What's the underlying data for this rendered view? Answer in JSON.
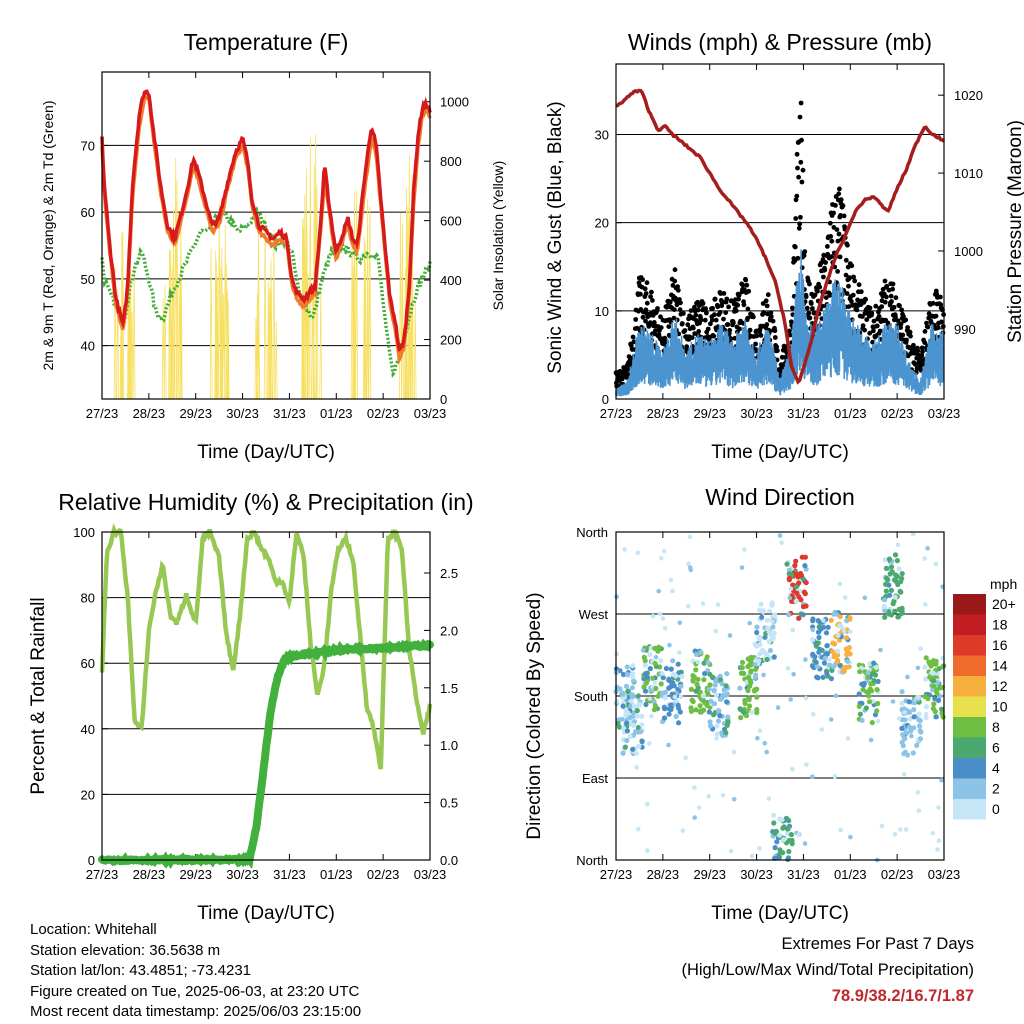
{
  "chart_data": [
    {
      "type": "line",
      "title": "Temperature (F)",
      "xlabel": "Time (Day/UTC)",
      "ylabel": "2m & 9m T (Red, Orange) & 2m Td (Green)",
      "ylabel_right": "Solar Insolation (Yellow)",
      "x_ticks": [
        "27/23",
        "28/23",
        "29/23",
        "30/23",
        "31/23",
        "01/23",
        "02/23",
        "03/23"
      ],
      "ylim": [
        32,
        81
      ],
      "y_ticks": [
        40,
        50,
        60,
        70
      ],
      "ylim_right": [
        0,
        1100
      ],
      "y_ticks_right": [
        0,
        200,
        400,
        600,
        800,
        1000
      ],
      "grid": true,
      "series": [
        {
          "color": "#d7191c",
          "x": [
            0,
            0.05,
            0.15,
            0.3,
            0.45,
            0.55,
            0.65,
            0.8,
            0.9,
            1.0,
            1.1,
            1.25,
            1.4,
            1.55,
            1.7,
            1.8,
            1.95,
            2.05,
            2.2,
            2.35,
            2.5,
            2.6,
            2.7,
            2.85,
            3.0,
            3.1,
            3.2,
            3.35,
            3.5,
            3.65,
            3.8,
            3.95,
            4.05,
            4.15,
            4.3,
            4.45,
            4.55,
            4.65,
            4.75,
            4.85,
            4.95,
            5.0,
            5.1,
            5.25,
            5.35,
            5.45,
            5.6,
            5.75,
            5.85,
            5.95,
            6.05,
            6.15,
            6.25,
            6.35,
            6.45,
            6.55,
            6.65,
            6.75,
            6.85,
            6.95,
            7.0
          ],
          "values": [
            71,
            64,
            56,
            47,
            43,
            49,
            64,
            75,
            78,
            78,
            72,
            64,
            58,
            56,
            60,
            63,
            68,
            66,
            62,
            58,
            59,
            62,
            65,
            69,
            71,
            68,
            62,
            58,
            57,
            56,
            57,
            56,
            50,
            48,
            47,
            48,
            49,
            57,
            67,
            61,
            56,
            54,
            56,
            59,
            56,
            55,
            65,
            73,
            70,
            62,
            54,
            47,
            44,
            39,
            41,
            48,
            63,
            72,
            76,
            76,
            75
          ]
        },
        {
          "color": "#f07c2b",
          "x": [
            0,
            0.05,
            0.15,
            0.3,
            0.45,
            0.55,
            0.65,
            0.8,
            0.9,
            1.0,
            1.1,
            1.25,
            1.4,
            1.55,
            1.7,
            1.8,
            1.95,
            2.05,
            2.2,
            2.35,
            2.5,
            2.6,
            2.7,
            2.85,
            3.0,
            3.1,
            3.2,
            3.35,
            3.5,
            3.65,
            3.8,
            3.95,
            4.05,
            4.15,
            4.3,
            4.45,
            4.55,
            4.65,
            4.75,
            4.85,
            4.95,
            5.0,
            5.1,
            5.25,
            5.35,
            5.45,
            5.6,
            5.75,
            5.85,
            5.95,
            6.05,
            6.15,
            6.25,
            6.35,
            6.45,
            6.55,
            6.65,
            6.75,
            6.85,
            6.95,
            7.0
          ],
          "values": [
            70,
            63,
            55,
            46,
            42,
            48,
            62,
            73,
            77,
            77,
            71,
            63,
            57,
            55,
            59,
            62,
            67,
            65,
            61,
            57,
            58,
            61,
            64,
            68,
            70,
            67,
            61,
            57,
            56,
            55,
            56,
            55,
            49,
            47,
            46,
            47,
            48,
            56,
            65,
            60,
            55,
            53,
            55,
            58,
            55,
            54,
            63,
            71,
            69,
            61,
            53,
            46,
            43,
            38,
            40,
            47,
            61,
            70,
            75,
            75,
            74
          ]
        },
        {
          "color": "#41ab34",
          "x": [
            0,
            0.05,
            0.15,
            0.3,
            0.45,
            0.55,
            0.7,
            0.85,
            1.0,
            1.15,
            1.3,
            1.5,
            1.7,
            1.9,
            2.1,
            2.3,
            2.5,
            2.7,
            2.9,
            3.1,
            3.3,
            3.5,
            3.7,
            3.9,
            4.05,
            4.2,
            4.35,
            4.5,
            4.7,
            4.9,
            5.1,
            5.3,
            5.5,
            5.7,
            5.9,
            6.05,
            6.2,
            6.35,
            6.5,
            6.7,
            6.9,
            7.0
          ],
          "values": [
            53,
            50,
            48,
            46,
            43,
            47,
            52,
            54,
            50,
            45,
            44,
            48,
            51,
            54,
            57,
            57,
            60,
            59,
            57,
            58,
            60,
            58,
            55,
            56,
            54,
            48,
            46,
            44,
            50,
            54,
            55,
            54,
            53,
            54,
            53,
            43,
            36,
            38,
            43,
            48,
            51,
            52
          ]
        }
      ],
      "series_right": [
        {
          "color": "#f7e061",
          "days": [
            0,
            1,
            2,
            3,
            4,
            5,
            6
          ],
          "peaks": [
            770,
            980,
            830,
            870,
            1050,
            1060,
            1000
          ]
        }
      ]
    },
    {
      "type": "scatter",
      "title": "Winds (mph) & Pressure (mb)",
      "xlabel": "Time (Day/UTC)",
      "ylabel": "Sonic Wind & Gust (Blue, Black)",
      "ylabel_right": "Station Pressure (Maroon)",
      "x_ticks": [
        "27/23",
        "28/23",
        "29/23",
        "30/23",
        "31/23",
        "01/23",
        "02/23",
        "03/23"
      ],
      "ylim": [
        0,
        38
      ],
      "y_ticks": [
        0,
        10,
        20,
        30
      ],
      "ylim_right": [
        981,
        1024
      ],
      "y_ticks_right": [
        990,
        1000,
        1010,
        1020
      ],
      "grid": true,
      "series": [
        {
          "color": "#000000",
          "x": [
            0,
            0.25,
            0.5,
            0.75,
            1.0,
            1.25,
            1.5,
            1.75,
            2.0,
            2.25,
            2.5,
            2.75,
            3.0,
            3.25,
            3.5,
            3.75,
            3.85,
            3.95,
            4.05,
            4.25,
            4.5,
            4.75,
            5.0,
            5.25,
            5.5,
            5.75,
            6.0,
            6.25,
            6.5,
            6.75,
            7.0
          ],
          "values": [
            3,
            4,
            14,
            13,
            9,
            15,
            9,
            12,
            10,
            13,
            11,
            14,
            9,
            13,
            4,
            10,
            27,
            34,
            16,
            12,
            20,
            26,
            16,
            12,
            10,
            14,
            13,
            8,
            5,
            13,
            12
          ]
        },
        {
          "color": "#4c94d0",
          "x": [
            0,
            0.25,
            0.5,
            0.75,
            1.0,
            1.25,
            1.5,
            1.75,
            2.0,
            2.25,
            2.5,
            2.75,
            3.0,
            3.25,
            3.5,
            3.75,
            3.85,
            3.95,
            4.05,
            4.25,
            4.5,
            4.75,
            5.0,
            5.25,
            5.5,
            5.75,
            6.0,
            6.25,
            6.5,
            6.75,
            7.0
          ],
          "values": [
            1,
            2,
            8,
            7,
            5,
            9,
            5,
            7,
            6,
            8,
            6,
            9,
            5,
            8,
            2,
            6,
            12,
            16,
            9,
            7,
            11,
            13,
            9,
            7,
            6,
            8,
            8,
            4,
            2,
            8,
            7
          ]
        }
      ],
      "series_right": [
        {
          "color": "#a51e1e",
          "x": [
            0,
            0.2,
            0.4,
            0.55,
            0.7,
            0.9,
            1.05,
            1.2,
            1.4,
            1.6,
            1.8,
            2.0,
            2.2,
            2.4,
            2.6,
            2.8,
            3.0,
            3.2,
            3.4,
            3.6,
            3.75,
            3.9,
            4.0,
            4.15,
            4.3,
            4.5,
            4.7,
            4.9,
            5.1,
            5.3,
            5.5,
            5.65,
            5.8,
            6.0,
            6.2,
            6.35,
            6.5,
            6.6,
            6.75,
            6.9,
            7.0
          ],
          "values": [
            1018.5,
            1019.5,
            1020.5,
            1020.5,
            1018,
            1015.5,
            1016,
            1015,
            1014,
            1013,
            1012,
            1010,
            1008,
            1006.5,
            1005,
            1003.5,
            1001.5,
            999,
            996,
            991,
            985,
            983,
            985,
            988,
            992,
            996,
            999.5,
            1002,
            1005,
            1006.5,
            1007,
            1006,
            1005,
            1008,
            1010.5,
            1013,
            1015,
            1016,
            1015,
            1014.5,
            1014
          ]
        }
      ]
    },
    {
      "type": "line",
      "title": "Relative Humidity (%) & Precipitation (in)",
      "xlabel": "Time (Day/UTC)",
      "ylabel": "Percent & Total Rainfall",
      "x_ticks": [
        "27/23",
        "28/23",
        "29/23",
        "30/23",
        "31/23",
        "01/23",
        "02/23",
        "03/23"
      ],
      "ylim": [
        0,
        100
      ],
      "y_ticks": [
        0,
        20,
        40,
        60,
        80,
        100
      ],
      "ylim_right": [
        0,
        2.857
      ],
      "y_ticks_right": [
        "0.0",
        "0.5",
        "1.0",
        "1.5",
        "2.0",
        "2.5"
      ],
      "grid": true,
      "series": [
        {
          "color": "#97c854",
          "x": [
            0,
            0.1,
            0.25,
            0.4,
            0.55,
            0.7,
            0.85,
            1.0,
            1.15,
            1.3,
            1.45,
            1.6,
            1.8,
            2.0,
            2.15,
            2.3,
            2.5,
            2.65,
            2.8,
            2.95,
            3.1,
            3.25,
            3.4,
            3.55,
            3.7,
            3.85,
            4.0,
            4.15,
            4.3,
            4.45,
            4.6,
            4.75,
            4.9,
            5.05,
            5.2,
            5.35,
            5.5,
            5.65,
            5.8,
            5.95,
            6.1,
            6.25,
            6.4,
            6.55,
            6.7,
            6.85,
            7.0
          ],
          "values": [
            57,
            93,
            100,
            100,
            80,
            42,
            40,
            70,
            82,
            90,
            75,
            72,
            81,
            72,
            98,
            100,
            92,
            69,
            58,
            75,
            98,
            100,
            95,
            92,
            85,
            85,
            78,
            100,
            93,
            66,
            50,
            60,
            83,
            95,
            98,
            92,
            70,
            47,
            40,
            28,
            98,
            100,
            95,
            65,
            50,
            38,
            47
          ]
        },
        {
          "color": "#41b03c",
          "x": [
            0,
            1,
            2,
            3,
            3.15,
            3.3,
            3.45,
            3.6,
            3.75,
            3.9,
            4.1,
            4.5,
            5.0,
            6.0,
            7.0
          ],
          "values": [
            0,
            0,
            0,
            0,
            0.01,
            0.3,
            0.8,
            1.3,
            1.6,
            1.75,
            1.78,
            1.8,
            1.83,
            1.85,
            1.87
          ]
        }
      ]
    },
    {
      "type": "scatter",
      "title": "Wind Direction",
      "xlabel": "Time (Day/UTC)",
      "ylabel": "Direction (Colored By Speed)",
      "x_ticks": [
        "27/23",
        "28/23",
        "29/23",
        "30/23",
        "31/23",
        "01/23",
        "02/23",
        "03/23"
      ],
      "y_ticks": [
        "North",
        "East",
        "South",
        "West",
        "North"
      ],
      "grid": true,
      "legend": {
        "title": "mph",
        "labels": [
          "0",
          "2",
          "4",
          "6",
          "8",
          "10",
          "12",
          "14",
          "16",
          "18",
          "20+"
        ],
        "colors": [
          "#c6e6f7",
          "#8cc4e8",
          "#4a8ec8",
          "#4ba86e",
          "#6fbe44",
          "#e8e14e",
          "#f7b03e",
          "#ef6c2c",
          "#dd3a2a",
          "#c21d22",
          "#991818"
        ],
        "placement": "right"
      },
      "clusters": [
        {
          "x": 0.2,
          "dir": 180,
          "color": "#8cc4e8"
        },
        {
          "x": 0.35,
          "dir": 150,
          "color": "#c6e6f7"
        },
        {
          "x": 0.8,
          "dir": 200,
          "color": "#6fbe44"
        },
        {
          "x": 1.2,
          "dir": 185,
          "color": "#4a8ec8"
        },
        {
          "x": 1.8,
          "dir": 195,
          "color": "#6fbe44"
        },
        {
          "x": 2.2,
          "dir": 170,
          "color": "#8cc4e8"
        },
        {
          "x": 2.8,
          "dir": 190,
          "color": "#6fbe44"
        },
        {
          "x": 3.2,
          "dir": 250,
          "color": "#c6e6f7"
        },
        {
          "x": 3.55,
          "dir": 15,
          "color": "#4ba86e"
        },
        {
          "x": 3.85,
          "dir": 300,
          "color": "#dd3a2a"
        },
        {
          "x": 4.4,
          "dir": 230,
          "color": "#4a8ec8"
        },
        {
          "x": 4.8,
          "dir": 240,
          "color": "#f7b03e"
        },
        {
          "x": 5.4,
          "dir": 185,
          "color": "#6fbe44"
        },
        {
          "x": 5.9,
          "dir": 300,
          "color": "#4ba86e"
        },
        {
          "x": 6.3,
          "dir": 150,
          "color": "#8cc4e8"
        },
        {
          "x": 6.8,
          "dir": 190,
          "color": "#6fbe44"
        }
      ]
    }
  ],
  "info": {
    "location": "Location: Whitehall",
    "elevation": "Station elevation: 36.5638 m",
    "latlon": "Station lat/lon: 43.4851; -73.4231",
    "created": "Figure created on Tue, 2025-06-03, at 23:20 UTC",
    "recent": "Most recent data timestamp: 2025/06/03 23:15:00"
  },
  "extremes": {
    "title": "Extremes For Past 7 Days",
    "subtitle": "(High/Low/Max Wind/Total Precipitation)",
    "values": "78.9/38.2/16.7/1.87"
  }
}
